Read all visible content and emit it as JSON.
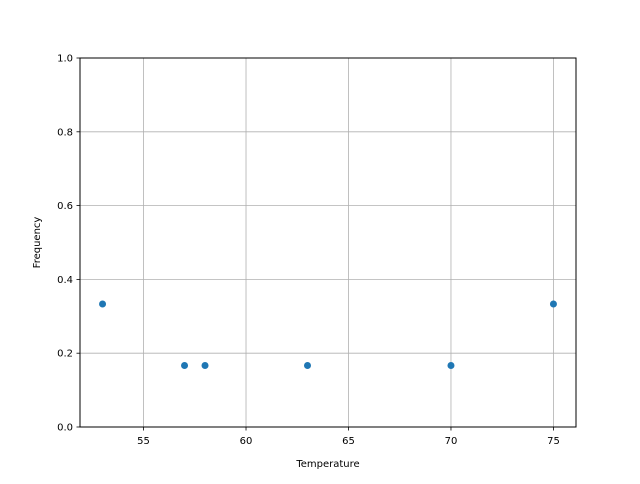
{
  "chart_data": {
    "type": "scatter",
    "title": "",
    "xlabel": "Temperature",
    "ylabel": "Frequency",
    "xlim": [
      51.9,
      76.1
    ],
    "ylim": [
      0,
      1.0
    ],
    "xticks": [
      "55",
      "60",
      "65",
      "70",
      "75"
    ],
    "yticks": [
      "0.0",
      "0.2",
      "0.4",
      "0.6",
      "0.8",
      "1.0"
    ],
    "grid": true,
    "legend": "none",
    "color": "#1f77b4",
    "points": [
      {
        "x": 53,
        "y": 0.3333
      },
      {
        "x": 57,
        "y": 0.1667
      },
      {
        "x": 58,
        "y": 0.1667
      },
      {
        "x": 63,
        "y": 0.1667
      },
      {
        "x": 70,
        "y": 0.1667
      },
      {
        "x": 75,
        "y": 0.3333
      }
    ]
  }
}
